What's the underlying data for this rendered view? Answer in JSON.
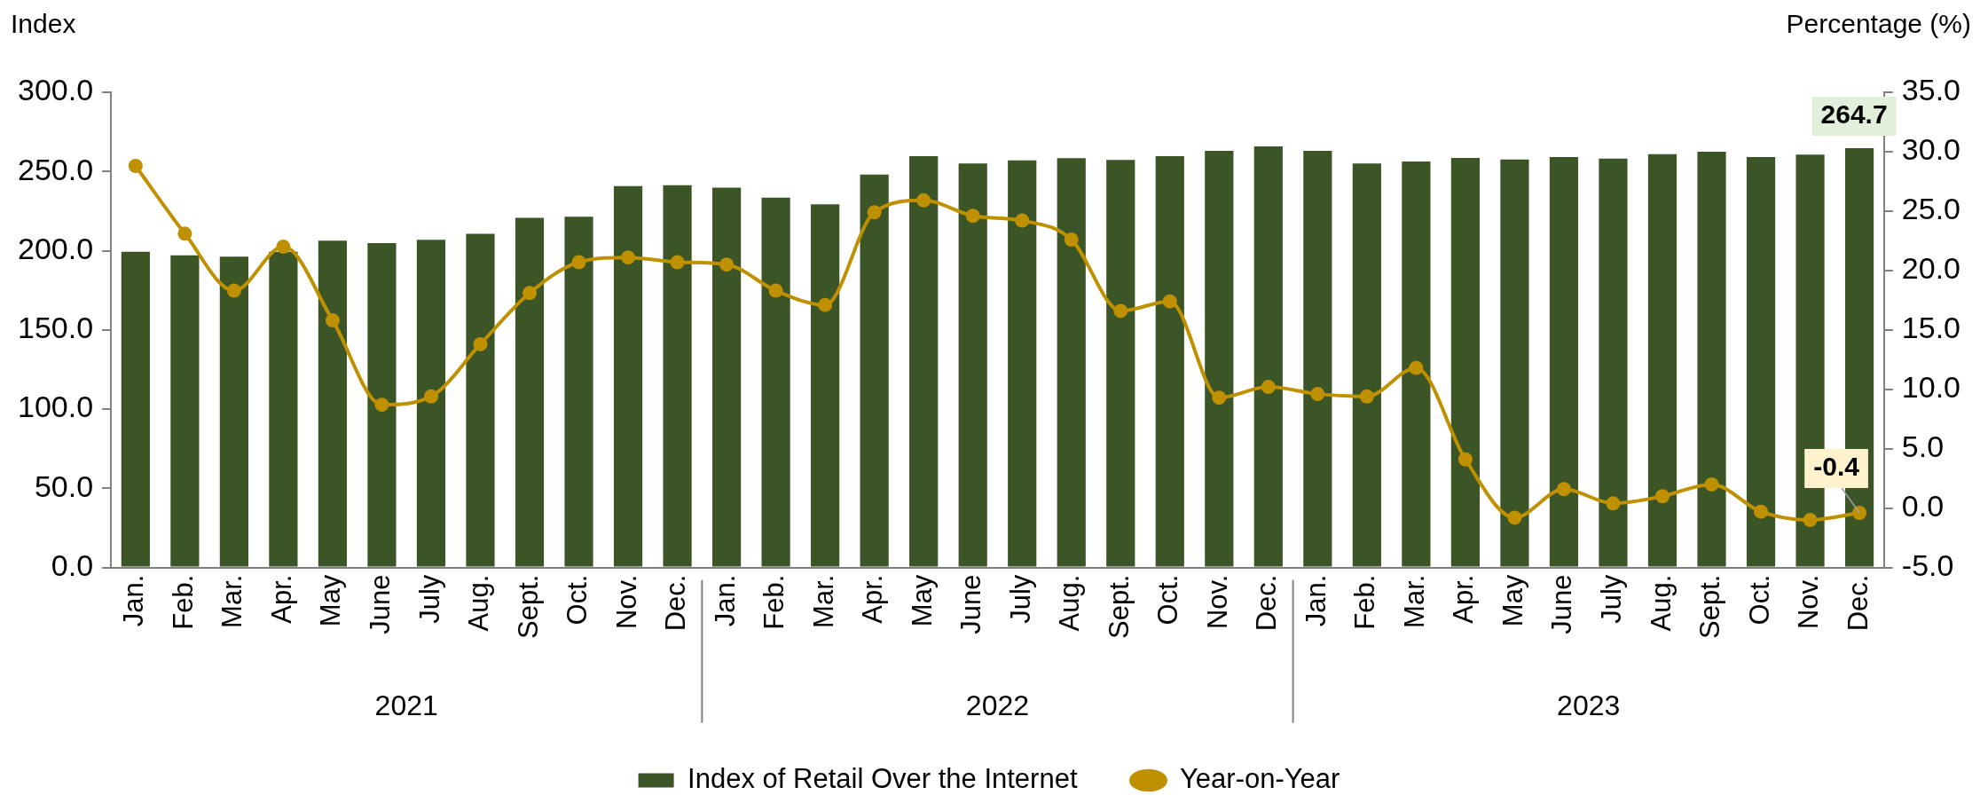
{
  "chart_data": {
    "type": "bar",
    "categories": [
      "Jan.",
      "Feb.",
      "Mar.",
      "Apr.",
      "May",
      "June",
      "July",
      "Aug.",
      "Sept.",
      "Oct.",
      "Nov.",
      "Dec.",
      "Jan.",
      "Feb.",
      "Mar.",
      "Apr.",
      "May",
      "June",
      "July",
      "Aug.",
      "Sept.",
      "Oct.",
      "Nov.",
      "Dec.",
      "Jan.",
      "Feb.",
      "Mar.",
      "Apr.",
      "May",
      "June",
      "July",
      "Aug.",
      "Sept.",
      "Oct.",
      "Nov.",
      "Dec."
    ],
    "ylabel": "Index",
    "y2label": "Percentage (%)",
    "annotations": [
      "2021",
      "2022",
      "2023"
    ],
    "series": [
      {
        "name": "Index of Retail Over the Internet",
        "color": "#3b5526",
        "values": [
          199.3,
          197.1,
          196.2,
          199.3,
          206.3,
          204.8,
          206.9,
          210.6,
          220.8,
          221.4,
          240.7,
          241.3,
          239.8,
          233.5,
          229.3,
          248.1,
          259.7,
          255.0,
          257.0,
          258.4,
          257.3,
          259.7,
          263.0,
          265.8,
          263.0,
          255.1,
          256.3,
          258.5,
          257.6,
          259.1,
          258.1,
          260.9,
          262.5,
          259.1,
          260.6,
          264.7
        ],
        "value_labels": [
          null,
          null,
          null,
          null,
          null,
          null,
          null,
          null,
          null,
          null,
          null,
          null,
          null,
          null,
          null,
          null,
          null,
          null,
          null,
          null,
          null,
          null,
          null,
          null,
          null,
          null,
          null,
          null,
          null,
          null,
          null,
          null,
          null,
          null,
          null,
          "264.7"
        ]
      },
      {
        "name": "Year-on-Year",
        "type": "line",
        "axis": "y2",
        "color": "#bf9000",
        "marker": "circle",
        "values": [
          28.8,
          23.1,
          18.3,
          22.0,
          15.8,
          8.7,
          9.4,
          13.8,
          18.1,
          20.7,
          21.1,
          20.7,
          20.5,
          18.3,
          17.1,
          24.9,
          25.9,
          24.6,
          24.2,
          22.6,
          16.6,
          17.4,
          9.3,
          10.2,
          9.6,
          9.4,
          11.8,
          4.1,
          -0.8,
          1.6,
          0.4,
          1.0,
          2.0,
          -0.3,
          -1.0,
          -0.4
        ],
        "value_labels": [
          null,
          null,
          null,
          null,
          null,
          null,
          null,
          null,
          null,
          null,
          null,
          null,
          null,
          null,
          null,
          null,
          null,
          null,
          null,
          null,
          null,
          null,
          null,
          null,
          null,
          null,
          null,
          null,
          null,
          null,
          null,
          null,
          null,
          null,
          null,
          "-0.4"
        ]
      }
    ],
    "ylim": [
      0,
      300
    ],
    "yticks": [
      {
        "value": 0,
        "label": "0.0"
      },
      {
        "value": 50,
        "label": "50.0"
      },
      {
        "value": 100,
        "label": "100.0"
      },
      {
        "value": 150,
        "label": "150.0"
      },
      {
        "value": 200,
        "label": "200.0"
      },
      {
        "value": 250,
        "label": "250.0"
      },
      {
        "value": 300,
        "label": "300.0"
      }
    ],
    "y2lim": [
      -5,
      35
    ],
    "y2ticks": [
      {
        "value": -5,
        "label": "-5.0"
      },
      {
        "value": 0,
        "label": "0.0"
      },
      {
        "value": 5,
        "label": "5.0"
      },
      {
        "value": 10,
        "label": "10.0"
      },
      {
        "value": 15,
        "label": "15.0"
      },
      {
        "value": 20,
        "label": "20.0"
      },
      {
        "value": 25,
        "label": "25.0"
      },
      {
        "value": 30,
        "label": "30.0"
      },
      {
        "value": 35,
        "label": "35.0"
      }
    ],
    "grid": false,
    "legend": "bottom"
  }
}
